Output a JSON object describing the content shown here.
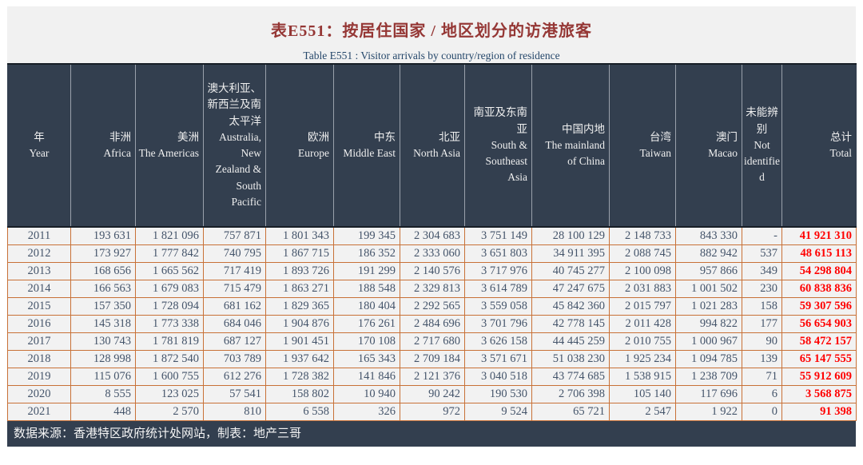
{
  "page": {
    "title_zh": "表E551：按居住国家 / 地区划分的访港旅客",
    "title_en": "Table E551 : Visitor arrivals by country/region of residence",
    "source_note": "数据来源：香港特区政府统计处网站，制表：地产三哥"
  },
  "colors": {
    "title_red": "#953735",
    "subtitle_navy": "#25476A",
    "band_navy": "#333F4F",
    "data_text": "#44546A",
    "total_red": "#FF0000",
    "grid_orange": "#C87137",
    "title_band_bg": "#F1F1F1",
    "row_bg": "#F2F2F2"
  },
  "table": {
    "columns": [
      {
        "zh": "年",
        "en": "Year"
      },
      {
        "zh": "非洲",
        "en": "Africa"
      },
      {
        "zh": "美洲",
        "en": "The Americas"
      },
      {
        "zh": "澳大利亚、新西兰及南太平洋",
        "en": "Australia, New Zealand & South Pacific"
      },
      {
        "zh": "欧洲",
        "en": "Europe"
      },
      {
        "zh": "中东",
        "en": "Middle East"
      },
      {
        "zh": "北亚",
        "en": "North Asia"
      },
      {
        "zh": "南亚及东南亚",
        "en": "South & Southeast Asia"
      },
      {
        "zh": "中国内地",
        "en": "The mainland of China"
      },
      {
        "zh": "台湾",
        "en": "Taiwan"
      },
      {
        "zh": "澳门",
        "en": "Macao"
      },
      {
        "zh": "未能辨别",
        "en": "Not identified"
      },
      {
        "zh": "总计",
        "en": "Total"
      }
    ],
    "rows": [
      [
        "2011",
        "193 631",
        "1 821 096",
        "757 871",
        "1 801 343",
        "199 345",
        "2 304 683",
        "3 751 149",
        "28 100 129",
        "2 148 733",
        "843 330",
        "-",
        "41 921 310"
      ],
      [
        "2012",
        "173 927",
        "1 777 842",
        "740 795",
        "1 867 715",
        "186 352",
        "2 333 060",
        "3 651 803",
        "34 911 395",
        "2 088 745",
        "882 942",
        "537",
        "48 615 113"
      ],
      [
        "2013",
        "168 656",
        "1 665 562",
        "717 419",
        "1 893 726",
        "191 299",
        "2 140 576",
        "3 717 976",
        "40 745 277",
        "2 100 098",
        "957 866",
        "349",
        "54 298 804"
      ],
      [
        "2014",
        "166 563",
        "1 679 083",
        "715 479",
        "1 863 271",
        "188 548",
        "2 329 813",
        "3 614 789",
        "47 247 675",
        "2 031 883",
        "1 001 502",
        "230",
        "60 838 836"
      ],
      [
        "2015",
        "157 350",
        "1 728 094",
        "681 162",
        "1 829 365",
        "180 404",
        "2 292 565",
        "3 559 058",
        "45 842 360",
        "2 015 797",
        "1 021 283",
        "158",
        "59 307 596"
      ],
      [
        "2016",
        "145 318",
        "1 773 338",
        "684 046",
        "1 904 876",
        "176 261",
        "2 484 696",
        "3 701 796",
        "42 778 145",
        "2 011 428",
        "994 822",
        "177",
        "56 654 903"
      ],
      [
        "2017",
        "130 743",
        "1 781 819",
        "687 127",
        "1 901 451",
        "170 108",
        "2 717 680",
        "3 626 158",
        "44 445 259",
        "2 010 755",
        "1 000 967",
        "90",
        "58 472 157"
      ],
      [
        "2018",
        "128 998",
        "1 872 540",
        "703 789",
        "1 937 642",
        "165 343",
        "2 709 184",
        "3 571 671",
        "51 038 230",
        "1 925 234",
        "1 094 785",
        "139",
        "65 147 555"
      ],
      [
        "2019",
        "115 076",
        "1 600 755",
        "612 276",
        "1 728 382",
        "141 846",
        "2 121 376",
        "3 040 518",
        "43 774 685",
        "1 538 915",
        "1 238 709",
        "71",
        "55 912 609"
      ],
      [
        "2020",
        "8 555",
        "123 025",
        "57 541",
        "158 802",
        "10 940",
        "90 242",
        "190 530",
        "2 706 398",
        "105 140",
        "117 696",
        "6",
        "3 568 875"
      ],
      [
        "2021",
        "448",
        "2 570",
        "810",
        "6 558",
        "326",
        "972",
        "9 524",
        "65 721",
        "2 547",
        "1 922",
        "0",
        "91 398"
      ]
    ]
  }
}
